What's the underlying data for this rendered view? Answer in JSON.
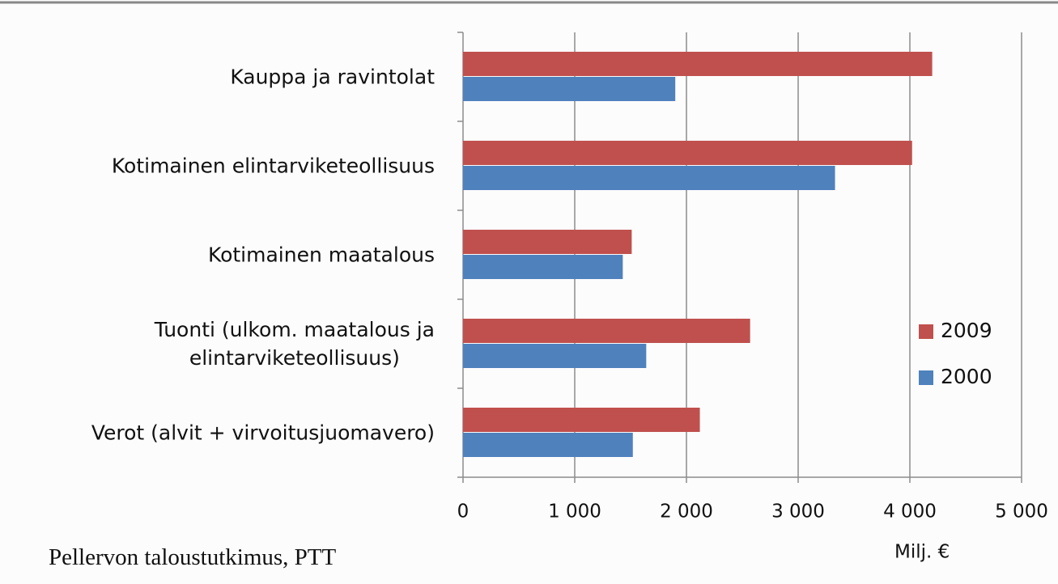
{
  "chart_data": {
    "type": "barh",
    "categories": [
      "Kauppa ja ravintolat",
      "Kotimainen elintarviketeollisuus",
      "Kotimainen maatalous",
      "Tuonti (ulkom. maatalous ja\nelintarviketeollisuus)",
      "Verot (alvit + virvoitusjuomavero)"
    ],
    "series": [
      {
        "name": "2009",
        "color": "#c0504d",
        "values": [
          4200,
          4020,
          1510,
          2570,
          2120
        ]
      },
      {
        "name": "2000",
        "color": "#4f81bd",
        "values": [
          1900,
          3330,
          1430,
          1640,
          1520
        ]
      }
    ],
    "xlim": [
      0,
      5000
    ],
    "xticks": [
      0,
      {
        "value": 1000,
        "label": "1 000"
      },
      {
        "value": 2000,
        "label": "2 000"
      },
      {
        "value": 3000,
        "label": "3 000"
      },
      {
        "value": 4000,
        "label": "4 000"
      },
      {
        "value": 5000,
        "label": "5 000"
      }
    ],
    "xlabel": "Milj. €",
    "grid": true,
    "legend": "right",
    "source": "Pellervon taloustutkimus, PTT"
  }
}
